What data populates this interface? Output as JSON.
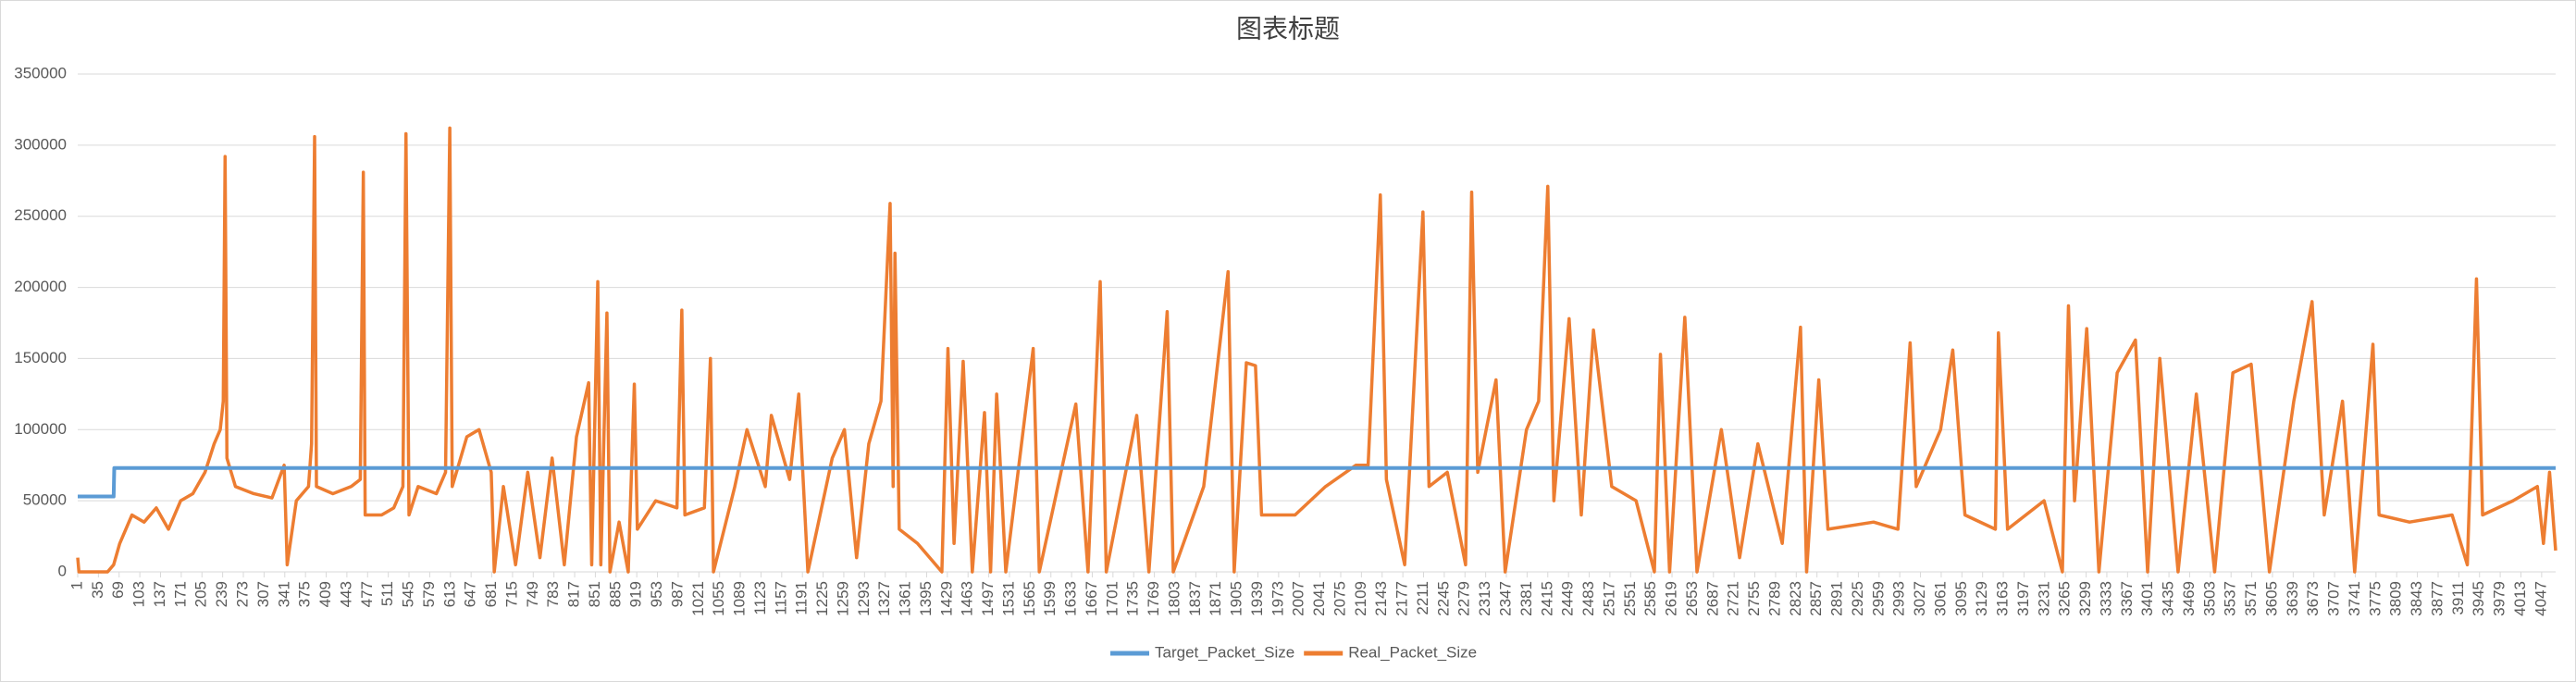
{
  "chart_data": {
    "type": "line",
    "title": "图表标题",
    "xlim": [
      1,
      4070
    ],
    "xticks": [
      1,
      35,
      69,
      103,
      137,
      171,
      205,
      239,
      273,
      307,
      341,
      375,
      409,
      443,
      477,
      511,
      545,
      579,
      613,
      647,
      681,
      715,
      749,
      783,
      817,
      851,
      885,
      919,
      953,
      987,
      1021,
      1055,
      1089,
      1123,
      1157,
      1191,
      1225,
      1259,
      1293,
      1327,
      1361,
      1395,
      1429,
      1463,
      1497,
      1531,
      1565,
      1599,
      1633,
      1667,
      1701,
      1735,
      1769,
      1803,
      1837,
      1871,
      1905,
      1939,
      1973,
      2007,
      2041,
      2075,
      2109,
      2143,
      2177,
      2211,
      2245,
      2279,
      2313,
      2347,
      2381,
      2415,
      2449,
      2483,
      2517,
      2551,
      2585,
      2619,
      2653,
      2687,
      2721,
      2755,
      2789,
      2823,
      2857,
      2891,
      2925,
      2959,
      2993,
      3027,
      3061,
      3095,
      3129,
      3163,
      3197,
      3231,
      3265,
      3299,
      3333,
      3367,
      3401,
      3435,
      3469,
      3503,
      3537,
      3571,
      3605,
      3639,
      3673,
      3707,
      3741,
      3775,
      3809,
      3843,
      3877,
      3911,
      3945,
      3979,
      4013,
      4047
    ],
    "ylim": [
      0,
      350000
    ],
    "yticks": [
      0,
      50000,
      100000,
      150000,
      200000,
      250000,
      300000,
      350000
    ],
    "grid": true,
    "legend": "bottom",
    "series": [
      {
        "name": "Target_Packet_Size",
        "color": "#5b9bd5",
        "x": [
          1,
          60,
          61,
          4070
        ],
        "values": [
          53000,
          53000,
          73000,
          73000
        ]
      },
      {
        "name": "Real_Packet_Size",
        "color": "#ed7d31",
        "x": [
          1,
          3,
          50,
          60,
          70,
          90,
          110,
          130,
          150,
          170,
          190,
          210,
          225,
          235,
          240,
          243,
          246,
          260,
          290,
          320,
          340,
          345,
          360,
          380,
          385,
          390,
          393,
          420,
          450,
          465,
          470,
          473,
          500,
          520,
          535,
          540,
          545,
          560,
          590,
          605,
          612,
          616,
          640,
          660,
          680,
          685,
          700,
          720,
          740,
          760,
          780,
          800,
          820,
          840,
          845,
          855,
          860,
          870,
          875,
          890,
          905,
          915,
          920,
          950,
          985,
          993,
          998,
          1030,
          1040,
          1045,
          1080,
          1100,
          1130,
          1140,
          1170,
          1185,
          1200,
          1240,
          1260,
          1280,
          1300,
          1320,
          1335,
          1340,
          1343,
          1350,
          1380,
          1420,
          1430,
          1440,
          1455,
          1470,
          1490,
          1500,
          1510,
          1525,
          1570,
          1580,
          1640,
          1660,
          1680,
          1690,
          1740,
          1760,
          1790,
          1800,
          1850,
          1890,
          1900,
          1920,
          1935,
          1945,
          2000,
          2050,
          2100,
          2120,
          2140,
          2150,
          2180,
          2210,
          2220,
          2250,
          2280,
          2290,
          2300,
          2330,
          2345,
          2380,
          2400,
          2415,
          2425,
          2450,
          2470,
          2490,
          2520,
          2560,
          2590,
          2600,
          2615,
          2640,
          2660,
          2700,
          2730,
          2760,
          2800,
          2830,
          2840,
          2860,
          2875,
          2950,
          2990,
          3010,
          3020,
          3060,
          3080,
          3100,
          3150,
          3155,
          3170,
          3230,
          3260,
          3270,
          3280,
          3300,
          3320,
          3350,
          3380,
          3400,
          3420,
          3450,
          3480,
          3510,
          3540,
          3570,
          3600,
          3640,
          3670,
          3690,
          3720,
          3740,
          3770,
          3780,
          3830,
          3900,
          3925,
          3940,
          3950,
          4000,
          4040,
          4050,
          4060,
          4070
        ],
        "values": [
          10000,
          0,
          0,
          5000,
          20000,
          40000,
          35000,
          45000,
          30000,
          50000,
          55000,
          70000,
          90000,
          100000,
          120000,
          292000,
          80000,
          60000,
          55000,
          52000,
          75000,
          5000,
          50000,
          60000,
          90000,
          306000,
          60000,
          55000,
          60000,
          65000,
          281000,
          40000,
          40000,
          45000,
          60000,
          308000,
          40000,
          60000,
          55000,
          70000,
          312000,
          60000,
          95000,
          100000,
          70000,
          0,
          60000,
          5000,
          70000,
          10000,
          80000,
          5000,
          95000,
          133000,
          5000,
          204000,
          5000,
          182000,
          0,
          35000,
          0,
          132000,
          30000,
          50000,
          45000,
          184000,
          40000,
          45000,
          150000,
          0,
          60000,
          100000,
          60000,
          110000,
          65000,
          125000,
          0,
          80000,
          100000,
          10000,
          90000,
          120000,
          259000,
          60000,
          224000,
          30000,
          20000,
          0,
          157000,
          20000,
          148000,
          0,
          112000,
          0,
          125000,
          0,
          157000,
          0,
          118000,
          0,
          204000,
          0,
          110000,
          0,
          183000,
          0,
          60000,
          211000,
          0,
          147000,
          145000,
          40000,
          40000,
          60000,
          75000,
          75000,
          265000,
          65000,
          5000,
          253000,
          60000,
          70000,
          5000,
          267000,
          70000,
          135000,
          0,
          100000,
          120000,
          271000,
          50000,
          178000,
          40000,
          170000,
          60000,
          50000,
          0,
          153000,
          0,
          179000,
          0,
          100000,
          10000,
          90000,
          20000,
          172000,
          0,
          135000,
          30000,
          35000,
          30000,
          161000,
          60000,
          100000,
          156000,
          40000,
          30000,
          168000,
          30000,
          50000,
          0,
          187000,
          50000,
          171000,
          0,
          140000,
          163000,
          0,
          150000,
          0,
          125000,
          0,
          140000,
          146000,
          0,
          120000,
          190000,
          40000,
          120000,
          0,
          160000,
          40000,
          35000,
          40000,
          5000,
          206000,
          40000,
          50000,
          60000,
          20000,
          70000,
          15000
        ]
      }
    ]
  }
}
